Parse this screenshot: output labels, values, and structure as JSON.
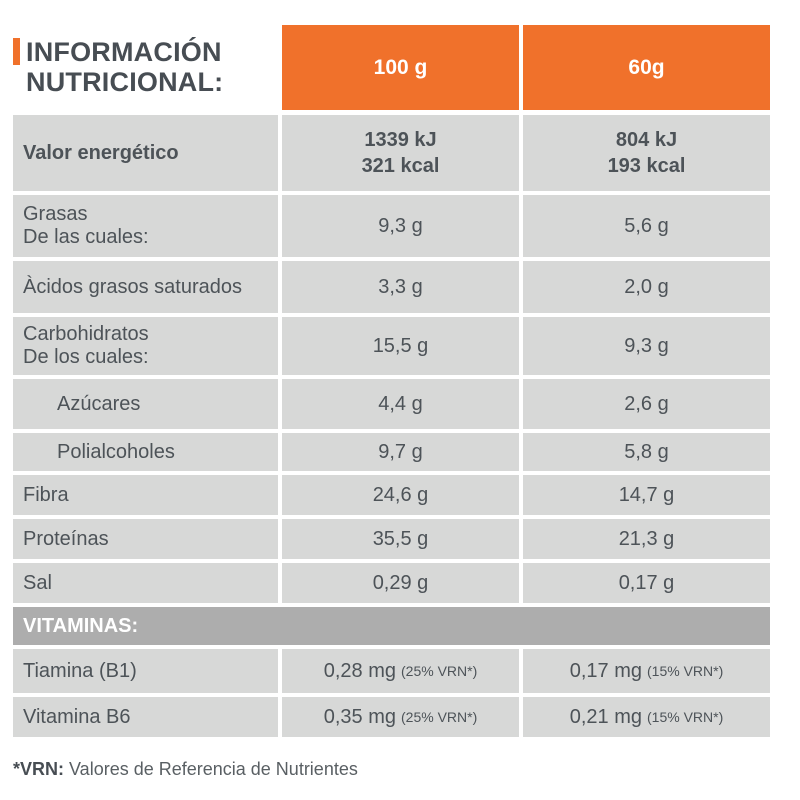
{
  "title": {
    "line1": "INFORMACIÓN",
    "line2": "NUTRICIONAL:"
  },
  "columns": {
    "col_100g": "100 g",
    "col_60g": "60g"
  },
  "rows": [
    {
      "id": "valor-energetico",
      "label": "Valor energético",
      "v100": "1339 kJ\n321 kcal",
      "v60": "804 kJ\n193 kcal"
    },
    {
      "id": "grasas",
      "label": "Grasas\nDe las cuales:",
      "v100": "9,3 g",
      "v60": "5,6 g"
    },
    {
      "id": "acidos-grasos-saturados",
      "label": "Àcidos grasos saturados",
      "v100": "3,3 g",
      "v60": "2,0 g"
    },
    {
      "id": "carbohidratos",
      "label": "Carbohidratos\nDe los cuales:",
      "v100": "15,5 g",
      "v60": "9,3 g"
    },
    {
      "id": "azucares",
      "label": "Azúcares",
      "v100": "4,4 g",
      "v60": "2,6 g"
    },
    {
      "id": "polialcoholes",
      "label": "Polialcoholes",
      "v100": "9,7 g",
      "v60": "5,8 g"
    },
    {
      "id": "fibra",
      "label": "Fibra",
      "v100": "24,6 g",
      "v60": "14,7 g"
    },
    {
      "id": "proteinas",
      "label": "Proteínas",
      "v100": "35,5 g",
      "v60": "21,3 g"
    },
    {
      "id": "sal",
      "label": "Sal",
      "v100": "0,29 g",
      "v60": "0,17 g"
    }
  ],
  "vitamins": {
    "header": "VITAMINAS:",
    "rows": [
      {
        "id": "tiamina-b1",
        "label": "Tiamina (B1)",
        "v100": "0,28 mg",
        "v100_vrn": "(25% VRN*)",
        "v60": "0,17 mg",
        "v60_vrn": "(15% VRN*)"
      },
      {
        "id": "vitamina-b6",
        "label": "Vitamina B6",
        "v100": "0,35 mg",
        "v100_vrn": "(25% VRN*)",
        "v60": "0,21 mg",
        "v60_vrn": "(15% VRN*)"
      }
    ]
  },
  "footnote": {
    "label": "*VRN:",
    "text": " Valores de Referencia de Nutrientes"
  },
  "colors": {
    "accent_orange": "#f0712b",
    "row_gray": "#d7d8d7",
    "banner_gray": "#adadad",
    "text": "#4d5358"
  }
}
